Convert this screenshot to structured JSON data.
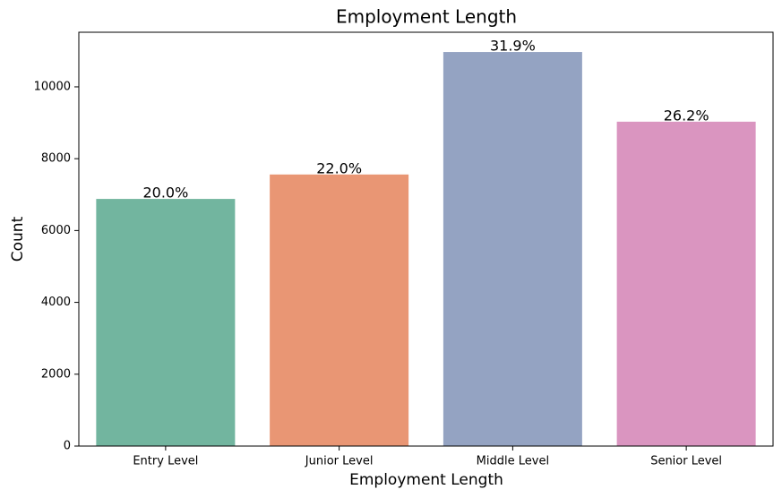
{
  "chart_data": {
    "type": "bar",
    "title": "Employment Length",
    "x_label": "Employment Length",
    "y_label": "Count",
    "categories": [
      "Entry Level",
      "Junior Level",
      "Middle Level",
      "Senior Level"
    ],
    "values": [
      6880,
      7560,
      10970,
      9030
    ],
    "annotations": [
      "20.0%",
      "22.0%",
      "31.9%",
      "26.2%"
    ],
    "colors": [
      "#72b59f",
      "#e99674",
      "#94a3c2",
      "#da95c0"
    ],
    "ylim": [
      0,
      11520
    ],
    "yticks": [
      0,
      2000,
      4000,
      6000,
      8000,
      10000
    ],
    "grid": false
  }
}
